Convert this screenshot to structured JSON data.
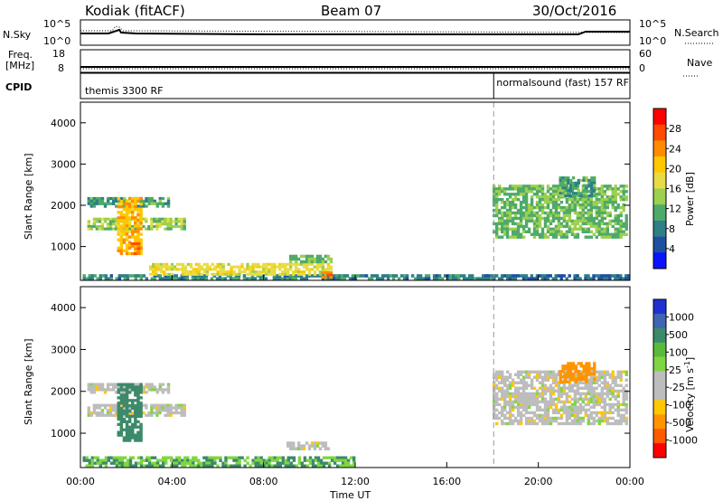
{
  "header": {
    "station": "Kodiak (fitACF)",
    "beam": "Beam 07",
    "date": "30/Oct/2016"
  },
  "top_panels": {
    "nsky_label": "N.Sky",
    "nsearch_label": "N.Search",
    "nsky_ticks": [
      "10^5",
      "10^0"
    ],
    "freq_label_1": "Freq.",
    "freq_label_2": "[MHz]",
    "freq_ticks": [
      "18",
      "8"
    ],
    "nave_ticks": [
      "60",
      "0"
    ],
    "nave_label": "Nave",
    "cpid_label": "CPID",
    "cpid_segments": [
      {
        "label": "themis 3300 RF",
        "start_hour": 0
      },
      {
        "label": "normalsound (fast) 157 RF",
        "start_hour": 18.05
      }
    ]
  },
  "axes": {
    "ylabel": "Slant Range [km]",
    "xlabel": "Time UT",
    "x_ticks": [
      "00:00",
      "04:00",
      "08:00",
      "12:00",
      "16:00",
      "20:00",
      "00:00"
    ],
    "y_ticks": [
      "1000",
      "2000",
      "3000",
      "4000"
    ]
  },
  "colorbars": {
    "power": {
      "label": "Power [dB]",
      "ticks": [
        "28",
        "24",
        "20",
        "16",
        "12",
        "8",
        "4"
      ],
      "colors": [
        "#ff0000",
        "#ff4a00",
        "#ff8c00",
        "#ffc800",
        "#e8dc46",
        "#9cd050",
        "#4faa6a",
        "#2e7f86",
        "#1f4fa0",
        "#0a14ff"
      ]
    },
    "velocity": {
      "label": "Velocity [m s",
      "label_sup": "-1",
      "label_end": "]",
      "ticks": [
        "1000",
        "500",
        "100",
        "25",
        "-25",
        "-100",
        "-500",
        "-1000"
      ],
      "colors": [
        "#2030d0",
        "#3e64b4",
        "#3c8a6a",
        "#5aba3c",
        "#7fd642",
        "#bdbdbd",
        "#bdbdbd",
        "#ffc800",
        "#ff9400",
        "#ff5a00",
        "#ff0000"
      ]
    }
  },
  "chart_data": {
    "type": "heatmap",
    "x_range_hours": [
      0,
      24
    ],
    "y_range_km": [
      180,
      4500
    ],
    "mode_change_hour": 18.05,
    "power_echoes": [
      {
        "t0": 0.3,
        "t1": 4.6,
        "r0": 1400,
        "r1": 1700,
        "power_db": 14
      },
      {
        "t0": 0.3,
        "t1": 3.9,
        "r0": 1950,
        "r1": 2200,
        "power_db": 10
      },
      {
        "t0": 1.6,
        "t1": 2.7,
        "r0": 800,
        "r1": 2200,
        "power_db": 22
      },
      {
        "t0": 2.2,
        "t1": 2.6,
        "r0": 800,
        "r1": 1100,
        "power_db": 26
      },
      {
        "t0": 0.1,
        "t1": 18.0,
        "r0": 190,
        "r1": 330,
        "power_db": 8
      },
      {
        "t0": 3.0,
        "t1": 11.0,
        "r0": 300,
        "r1": 600,
        "power_db": 18
      },
      {
        "t0": 9.0,
        "t1": 11.0,
        "r0": 600,
        "r1": 800,
        "power_db": 12
      },
      {
        "t0": 10.5,
        "t1": 11.0,
        "r0": 230,
        "r1": 400,
        "power_db": 26
      },
      {
        "t0": 18.0,
        "t1": 24.0,
        "r0": 190,
        "r1": 330,
        "power_db": 6
      },
      {
        "t0": 18.0,
        "t1": 23.9,
        "r0": 1200,
        "r1": 2500,
        "power_db": 12
      },
      {
        "t0": 20.9,
        "t1": 22.5,
        "r0": 2200,
        "r1": 2700,
        "power_db": 10
      }
    ],
    "velocity_echoes": [
      {
        "t0": 0.3,
        "t1": 4.6,
        "r0": 1400,
        "r1": 1700,
        "velocity": 0
      },
      {
        "t0": 0.3,
        "t1": 3.9,
        "r0": 1950,
        "r1": 2200,
        "velocity": 0
      },
      {
        "t0": 1.6,
        "t1": 2.7,
        "r0": 800,
        "r1": 2200,
        "velocity": 150
      },
      {
        "t0": 0.1,
        "t1": 12.0,
        "r0": 190,
        "r1": 450,
        "velocity": 100
      },
      {
        "t0": 9.0,
        "t1": 11.0,
        "r0": 600,
        "r1": 800,
        "velocity": 0
      },
      {
        "t0": 18.0,
        "t1": 23.9,
        "r0": 1200,
        "r1": 2500,
        "velocity": 0
      },
      {
        "t0": 20.9,
        "t1": 22.5,
        "r0": 2200,
        "r1": 2700,
        "velocity": -150
      }
    ]
  }
}
